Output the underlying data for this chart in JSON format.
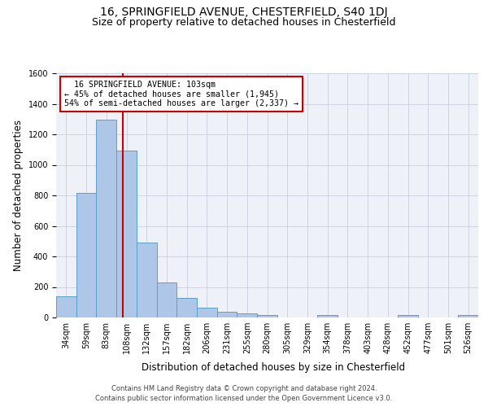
{
  "title1": "16, SPRINGFIELD AVENUE, CHESTERFIELD, S40 1DJ",
  "title2": "Size of property relative to detached houses in Chesterfield",
  "xlabel": "Distribution of detached houses by size in Chesterfield",
  "ylabel": "Number of detached properties",
  "footer1": "Contains HM Land Registry data © Crown copyright and database right 2024.",
  "footer2": "Contains public sector information licensed under the Open Government Licence v3.0.",
  "annotation_line1": "  16 SPRINGFIELD AVENUE: 103sqm",
  "annotation_line2": "← 45% of detached houses are smaller (1,945)",
  "annotation_line3": "54% of semi-detached houses are larger (2,337) →",
  "bar_values": [
    140,
    815,
    1295,
    1095,
    490,
    230,
    130,
    65,
    38,
    27,
    14,
    0,
    0,
    14,
    0,
    0,
    0,
    14,
    0,
    0,
    14
  ],
  "bin_labels": [
    "34sqm",
    "59sqm",
    "83sqm",
    "108sqm",
    "132sqm",
    "157sqm",
    "182sqm",
    "206sqm",
    "231sqm",
    "255sqm",
    "280sqm",
    "305sqm",
    "329sqm",
    "354sqm",
    "378sqm",
    "403sqm",
    "428sqm",
    "452sqm",
    "477sqm",
    "501sqm",
    "526sqm"
  ],
  "bar_color": "#aec6e8",
  "bar_edge_color": "#5a9fc8",
  "vline_color": "#cc0000",
  "annotation_box_color": "#cc0000",
  "ylim": [
    0,
    1600
  ],
  "yticks": [
    0,
    200,
    400,
    600,
    800,
    1000,
    1200,
    1400,
    1600
  ],
  "grid_color": "#c8d0dc",
  "bg_color": "#eef2f8",
  "title_fontsize": 10,
  "subtitle_fontsize": 9,
  "ylabel_fontsize": 8.5,
  "xlabel_fontsize": 8.5,
  "tick_fontsize": 7
}
